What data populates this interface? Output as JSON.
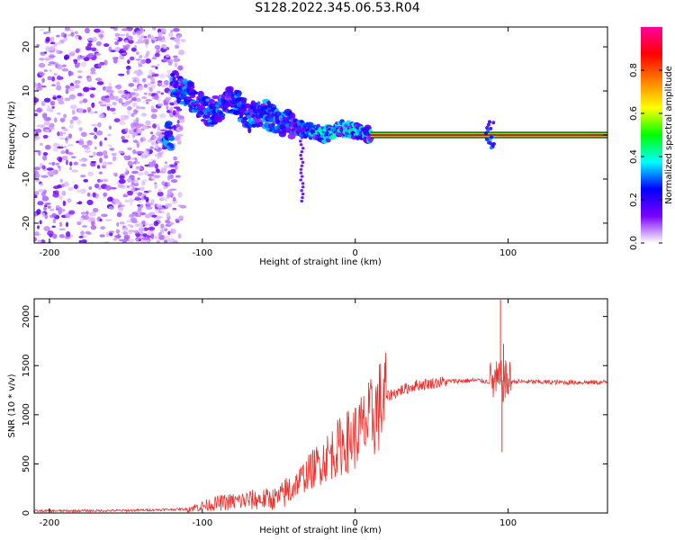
{
  "title": "S128.2022.345.06.53.R04",
  "chart_data": [
    {
      "type": "heatmap",
      "xlabel": "Height of straight line (km)",
      "ylabel": "Frequency (Hz)",
      "xlim": [
        -210,
        165
      ],
      "ylim": [
        -24.5,
        24.5
      ],
      "xticks": [
        -200,
        -100,
        0,
        100
      ],
      "yticks": [
        -20,
        -10,
        0,
        10,
        20
      ],
      "grid": false,
      "colorbar": {
        "label": "Normalized spectral amplitude",
        "ticks": [
          "0.0",
          "0.2",
          "0.4",
          "0.6",
          "0.8"
        ],
        "range": [
          0,
          1
        ],
        "colormap": [
          "#ffffff",
          "#7a00ff",
          "#0000ff",
          "#00ffff",
          "#00ff00",
          "#ffff00",
          "#ff7f00",
          "#ff0000",
          "#ff00a0"
        ]
      },
      "ridge": [
        {
          "h": -120,
          "f": 12
        },
        {
          "h": -105,
          "f": 8
        },
        {
          "h": -95,
          "f": 5
        },
        {
          "h": -80,
          "f": 8
        },
        {
          "h": -70,
          "f": 4
        },
        {
          "h": -60,
          "f": 5
        },
        {
          "h": -50,
          "f": 3
        },
        {
          "h": -40,
          "f": 2
        },
        {
          "h": -30,
          "f": 1
        },
        {
          "h": -20,
          "f": 0
        },
        {
          "h": -10,
          "f": 1.5
        },
        {
          "h": 0,
          "f": 1
        },
        {
          "h": 10,
          "f": 0
        },
        {
          "h": 165,
          "f": 0
        }
      ],
      "carrier_line": {
        "f": 0,
        "from_h": 10,
        "to_h": 165,
        "amplitude": 0.9
      }
    },
    {
      "type": "line",
      "xlabel": "Height of straight line (km)",
      "ylabel": "SNR (10 * v/v)",
      "xlim": [
        -210,
        165
      ],
      "ylim": [
        0,
        2180
      ],
      "xticks": [
        -200,
        -100,
        0,
        100
      ],
      "yticks": [
        0,
        500,
        1000,
        1500,
        2000
      ],
      "color": "#e8322d",
      "grid": false,
      "envelope": [
        {
          "h": -210,
          "snr": 20
        },
        {
          "h": -150,
          "snr": 25
        },
        {
          "h": -110,
          "snr": 40
        },
        {
          "h": -90,
          "snr": 100
        },
        {
          "h": -70,
          "snr": 130
        },
        {
          "h": -50,
          "snr": 150
        },
        {
          "h": -40,
          "snr": 280
        },
        {
          "h": -30,
          "snr": 420
        },
        {
          "h": -20,
          "snr": 550
        },
        {
          "h": -10,
          "snr": 680
        },
        {
          "h": 0,
          "snr": 780
        },
        {
          "h": 10,
          "snr": 950
        },
        {
          "h": 20,
          "snr": 1180
        },
        {
          "h": 30,
          "snr": 1250
        },
        {
          "h": 40,
          "snr": 1300
        },
        {
          "h": 60,
          "snr": 1340
        },
        {
          "h": 80,
          "snr": 1350
        },
        {
          "h": 90,
          "snr": 1330
        },
        {
          "h": 100,
          "snr": 1340
        },
        {
          "h": 130,
          "snr": 1330
        },
        {
          "h": 165,
          "snr": 1330
        }
      ],
      "spikes": [
        {
          "h": 95,
          "snr": 2170
        },
        {
          "h": 96,
          "snr": 620
        },
        {
          "h": 97,
          "snr": 1720
        }
      ]
    }
  ]
}
